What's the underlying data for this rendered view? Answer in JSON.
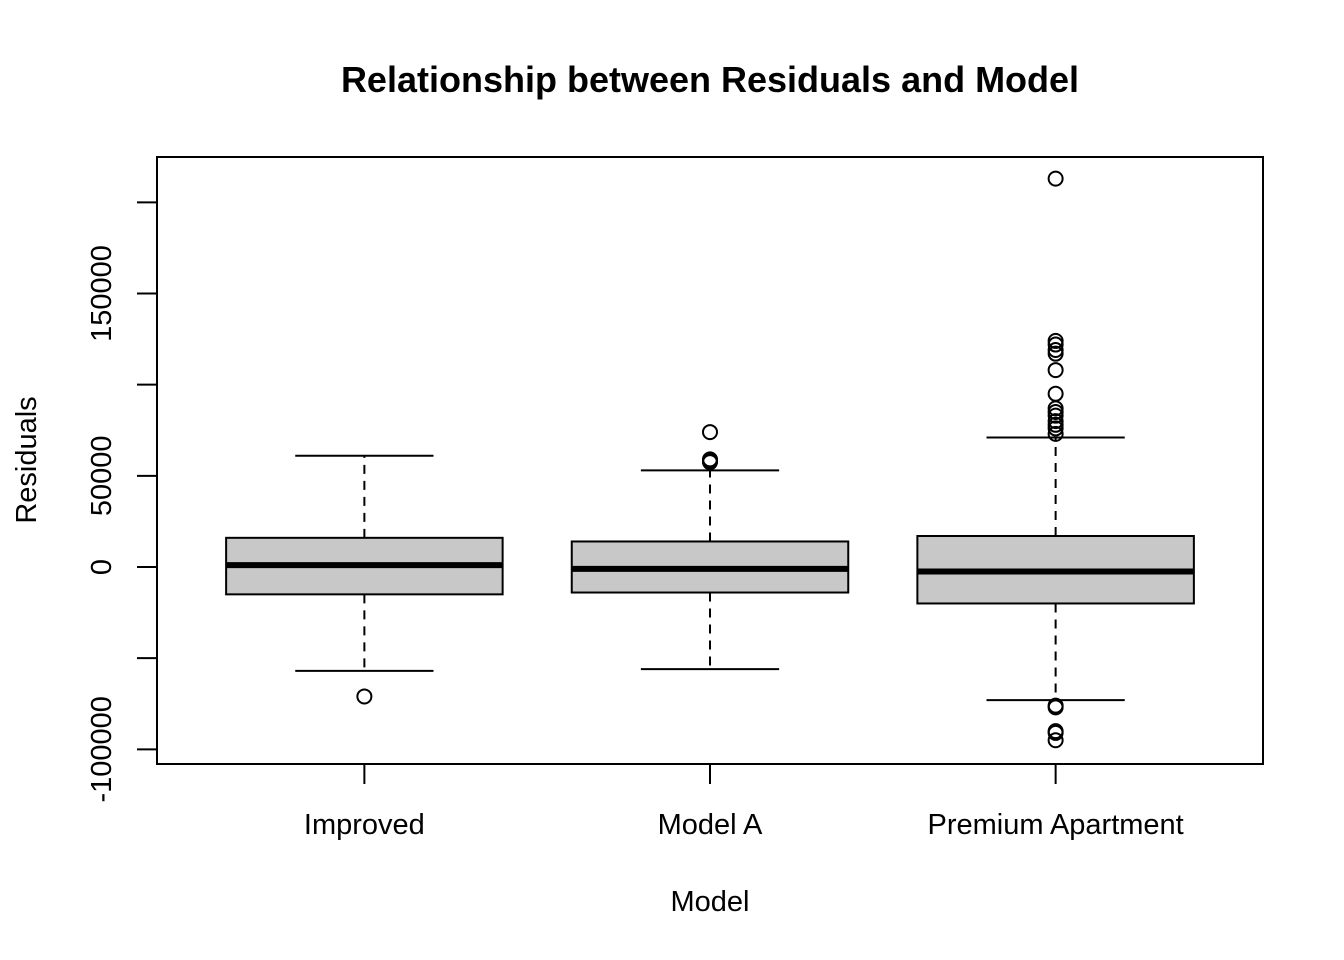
{
  "chart_data": {
    "type": "boxplot",
    "title": "Relationship between Residuals and Model",
    "xlabel": "Model",
    "ylabel": "Residuals",
    "ylim": [
      -103000,
      229000
    ],
    "y_ticks": [
      -100000,
      -50000,
      0,
      50000,
      100000,
      150000,
      200000
    ],
    "y_tick_labels": [
      "-100000",
      "",
      "0",
      "50000",
      "",
      "150000",
      ""
    ],
    "box_fill": "#c8c8c8",
    "categories": [
      "Improved",
      "Model A",
      "Premium Apartment"
    ],
    "boxes": [
      {
        "category": "Improved",
        "whisker_low": -57000,
        "q1": -15000,
        "median": 1000,
        "q3": 16000,
        "whisker_high": 61000,
        "outliers": [
          -71000
        ]
      },
      {
        "category": "Model A",
        "whisker_low": -56000,
        "q1": -14000,
        "median": -1000,
        "q3": 14000,
        "whisker_high": 53000,
        "outliers": [
          74000,
          58000,
          59000,
          58500,
          57500
        ]
      },
      {
        "category": "Premium Apartment",
        "whisker_low": -73000,
        "q1": -20000,
        "median": -2500,
        "q3": 17000,
        "whisker_high": 71000,
        "outliers": [
          213000,
          124000,
          122000,
          119000,
          117000,
          108000,
          95000,
          87000,
          85000,
          83000,
          80000,
          78000,
          76000,
          73000,
          -76000,
          -77000,
          -90000,
          -91000,
          -95000
        ]
      }
    ]
  }
}
